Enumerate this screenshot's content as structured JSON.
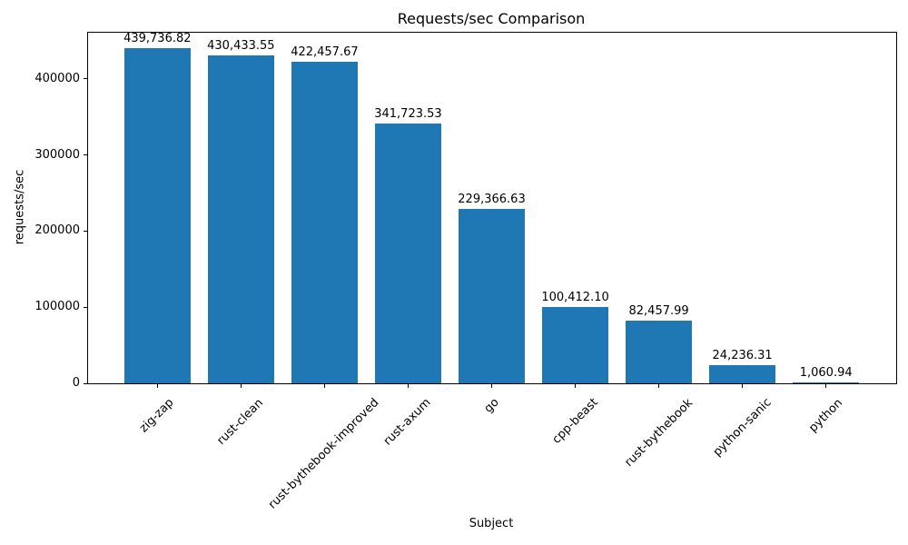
{
  "chart_data": {
    "type": "bar",
    "title": "Requests/sec Comparison",
    "xlabel": "Subject",
    "ylabel": "requests/sec",
    "categories": [
      "zig-zap",
      "rust-clean",
      "rust-bythebook-improved",
      "rust-axum",
      "go",
      "cpp-beast",
      "rust-bythebook",
      "python-sanic",
      "python"
    ],
    "values": [
      439736.82,
      430433.55,
      422457.67,
      341723.53,
      229366.63,
      100412.1,
      82457.99,
      24236.31,
      1060.94
    ],
    "value_labels": [
      "439,736.82",
      "430,433.55",
      "422,457.67",
      "341,723.53",
      "229,366.63",
      "100,412.10",
      "82,457.99",
      "24,236.31",
      "1,060.94"
    ],
    "yticks": [
      0,
      100000,
      200000,
      300000,
      400000
    ],
    "ytick_labels": [
      "0",
      "100000",
      "200000",
      "300000",
      "400000"
    ],
    "ylim": [
      0,
      461723.66
    ],
    "xtick_rotation": 45,
    "bar_color": "#1f77b4",
    "text_color": "#000000",
    "grid": false,
    "legend": null
  }
}
